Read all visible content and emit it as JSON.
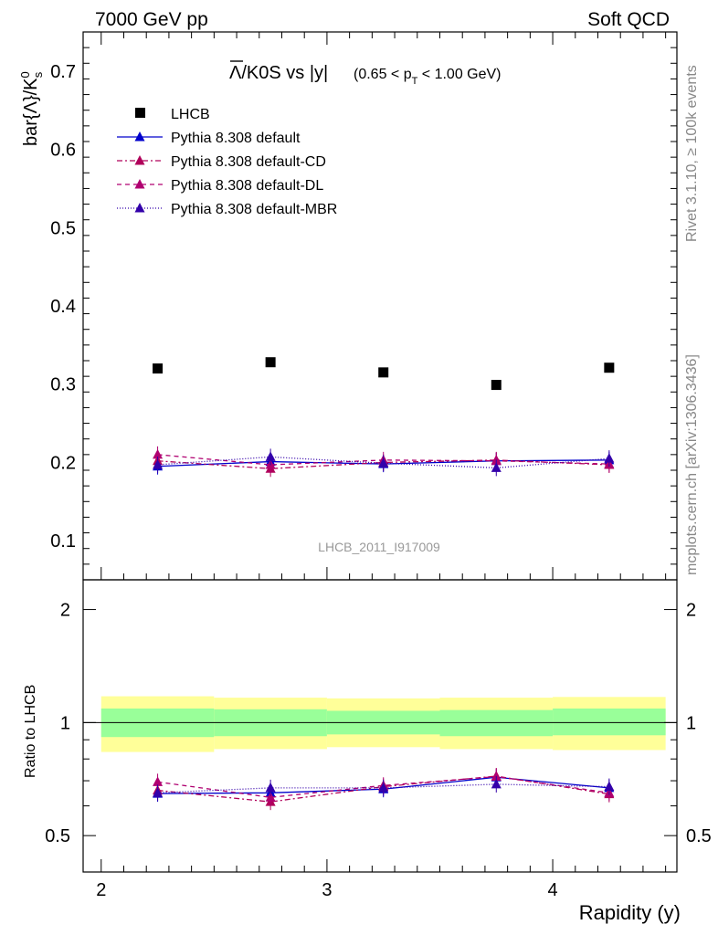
{
  "header": {
    "left": "7000 GeV pp",
    "right": "Soft QCD"
  },
  "side_labels": {
    "rivet": "Rivet 3.1.10, ≥ 100k events",
    "mcplots": "mcplots.cern.ch [arXiv:1306.3436]"
  },
  "colors": {
    "data": "#000000",
    "default": "#0000cc",
    "cd": "#b0005a",
    "dl": "#b00070",
    "mbr": "#3300aa",
    "band_inner": "#99ff99",
    "band_outer": "#ffff99"
  },
  "chart_data": [
    {
      "type": "scatter",
      "title_main": "Λ/K0S vs |y|",
      "title_range": "(0.65 < p",
      "title_sub": "T",
      "title_range_end": " < 1.00 GeV)",
      "ylabel": "bar{Λ}/K",
      "ylabel_sup": "0",
      "ylabel_sub": "s",
      "watermark": "LHCB_2011_I917009",
      "xlim": [
        1.92,
        4.55
      ],
      "ylim": [
        0.05,
        0.75
      ],
      "yticks": [
        0.1,
        0.2,
        0.3,
        0.4,
        0.5,
        0.6,
        0.7
      ],
      "ytick_labels": [
        "0.1",
        "0.2",
        "0.3",
        "0.4",
        "0.5",
        "0.6",
        "0.7"
      ],
      "x": [
        2.25,
        2.75,
        3.25,
        3.75,
        4.25
      ],
      "series": [
        {
          "name": "LHCB",
          "key": "data",
          "style": "square",
          "dash": "",
          "values": [
            0.32,
            0.328,
            0.315,
            0.299,
            0.321
          ]
        },
        {
          "name": "Pythia 8.308 default",
          "key": "default",
          "style": "triangle",
          "dash": "",
          "values": [
            0.195,
            0.201,
            0.198,
            0.202,
            0.203
          ]
        },
        {
          "name": "Pythia 8.308 default-CD",
          "key": "cd",
          "style": "triangle",
          "dash": "6,3,2,3",
          "values": [
            0.202,
            0.192,
            0.2,
            0.203,
            0.197
          ]
        },
        {
          "name": "Pythia 8.308 default-DL",
          "key": "dl",
          "style": "triangle",
          "dash": "5,4",
          "values": [
            0.21,
            0.197,
            0.203,
            0.202,
            0.198
          ]
        },
        {
          "name": "Pythia 8.308 default-MBR",
          "key": "mbr",
          "style": "triangle",
          "dash": "1,2",
          "values": [
            0.197,
            0.207,
            0.199,
            0.193,
            0.205
          ]
        }
      ]
    },
    {
      "type": "line",
      "ylabel": "Ratio to LHCB",
      "xlabel": "Rapidity (y)",
      "xlim": [
        1.92,
        4.55
      ],
      "ylim": [
        0.4,
        2.4
      ],
      "yticks": [
        0.5,
        1,
        2
      ],
      "ytick_labels": [
        "0.5",
        "1",
        "2"
      ],
      "xticks": [
        2,
        3,
        4
      ],
      "xtick_labels": [
        "2",
        "3",
        "4"
      ],
      "x": [
        2.25,
        2.75,
        3.25,
        3.75,
        4.25
      ],
      "bands": {
        "edges": [
          2.0,
          2.5,
          3.0,
          3.5,
          4.0,
          4.5
        ],
        "inner_lo": [
          0.915,
          0.92,
          0.93,
          0.92,
          0.925
        ],
        "inner_hi": [
          1.09,
          1.085,
          1.075,
          1.08,
          1.09
        ],
        "outer_lo": [
          0.835,
          0.85,
          0.86,
          0.85,
          0.845
        ],
        "outer_hi": [
          1.175,
          1.165,
          1.16,
          1.165,
          1.17
        ]
      },
      "series": [
        {
          "name": "Pythia 8.308 default",
          "key": "default",
          "dash": "",
          "values": [
            0.647,
            0.65,
            0.665,
            0.715,
            0.67
          ]
        },
        {
          "name": "Pythia 8.308 default-CD",
          "key": "cd",
          "dash": "6,3,2,3",
          "values": [
            0.66,
            0.615,
            0.675,
            0.72,
            0.645
          ]
        },
        {
          "name": "Pythia 8.308 default-DL",
          "key": "dl",
          "dash": "5,4",
          "values": [
            0.695,
            0.632,
            0.68,
            0.718,
            0.65
          ]
        },
        {
          "name": "Pythia 8.308 default-MBR",
          "key": "mbr",
          "dash": "1,2",
          "values": [
            0.65,
            0.67,
            0.67,
            0.685,
            0.675
          ]
        }
      ]
    }
  ]
}
